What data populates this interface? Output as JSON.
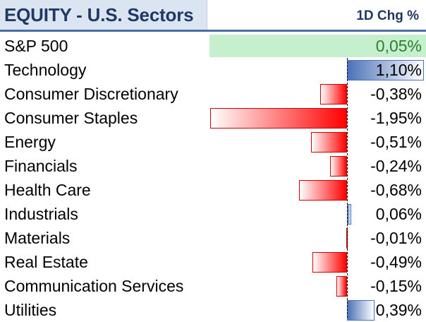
{
  "title": "EQUITY - U.S. Sectors",
  "column_header": "1D Chg %",
  "chart_data": {
    "type": "bar",
    "orientation": "horizontal",
    "title": "EQUITY - U.S. Sectors",
    "ylabel": "1D Chg %",
    "benchmark": {
      "label": "S&P 500",
      "value": 0.05,
      "display": "0,05%"
    },
    "categories": [
      "Technology",
      "Consumer Discretionary",
      "Consumer Staples",
      "Energy",
      "Financials",
      "Health Care",
      "Industrials",
      "Materials",
      "Real Estate",
      "Communication Services",
      "Utilities"
    ],
    "values": [
      1.1,
      -0.38,
      -1.95,
      -0.51,
      -0.24,
      -0.68,
      0.06,
      -0.01,
      -0.49,
      -0.15,
      0.39
    ],
    "display_values": [
      "1,10%",
      "-0,38%",
      "-1,95%",
      "-0,51%",
      "-0,24%",
      "-0,68%",
      "0,06%",
      "-0,01%",
      "-0,49%",
      "-0,15%",
      "0,39%"
    ],
    "xlim": [
      -1.95,
      1.1
    ]
  },
  "colors": {
    "header_fill": "#dbe5f2",
    "header_text": "#1f3864",
    "header_rule": "#4a6fa5",
    "benchmark_fill": "#c6efce",
    "benchmark_text": "#2e7d32",
    "negative_bar": "#ff0000",
    "positive_bar": "#4b72b8"
  }
}
